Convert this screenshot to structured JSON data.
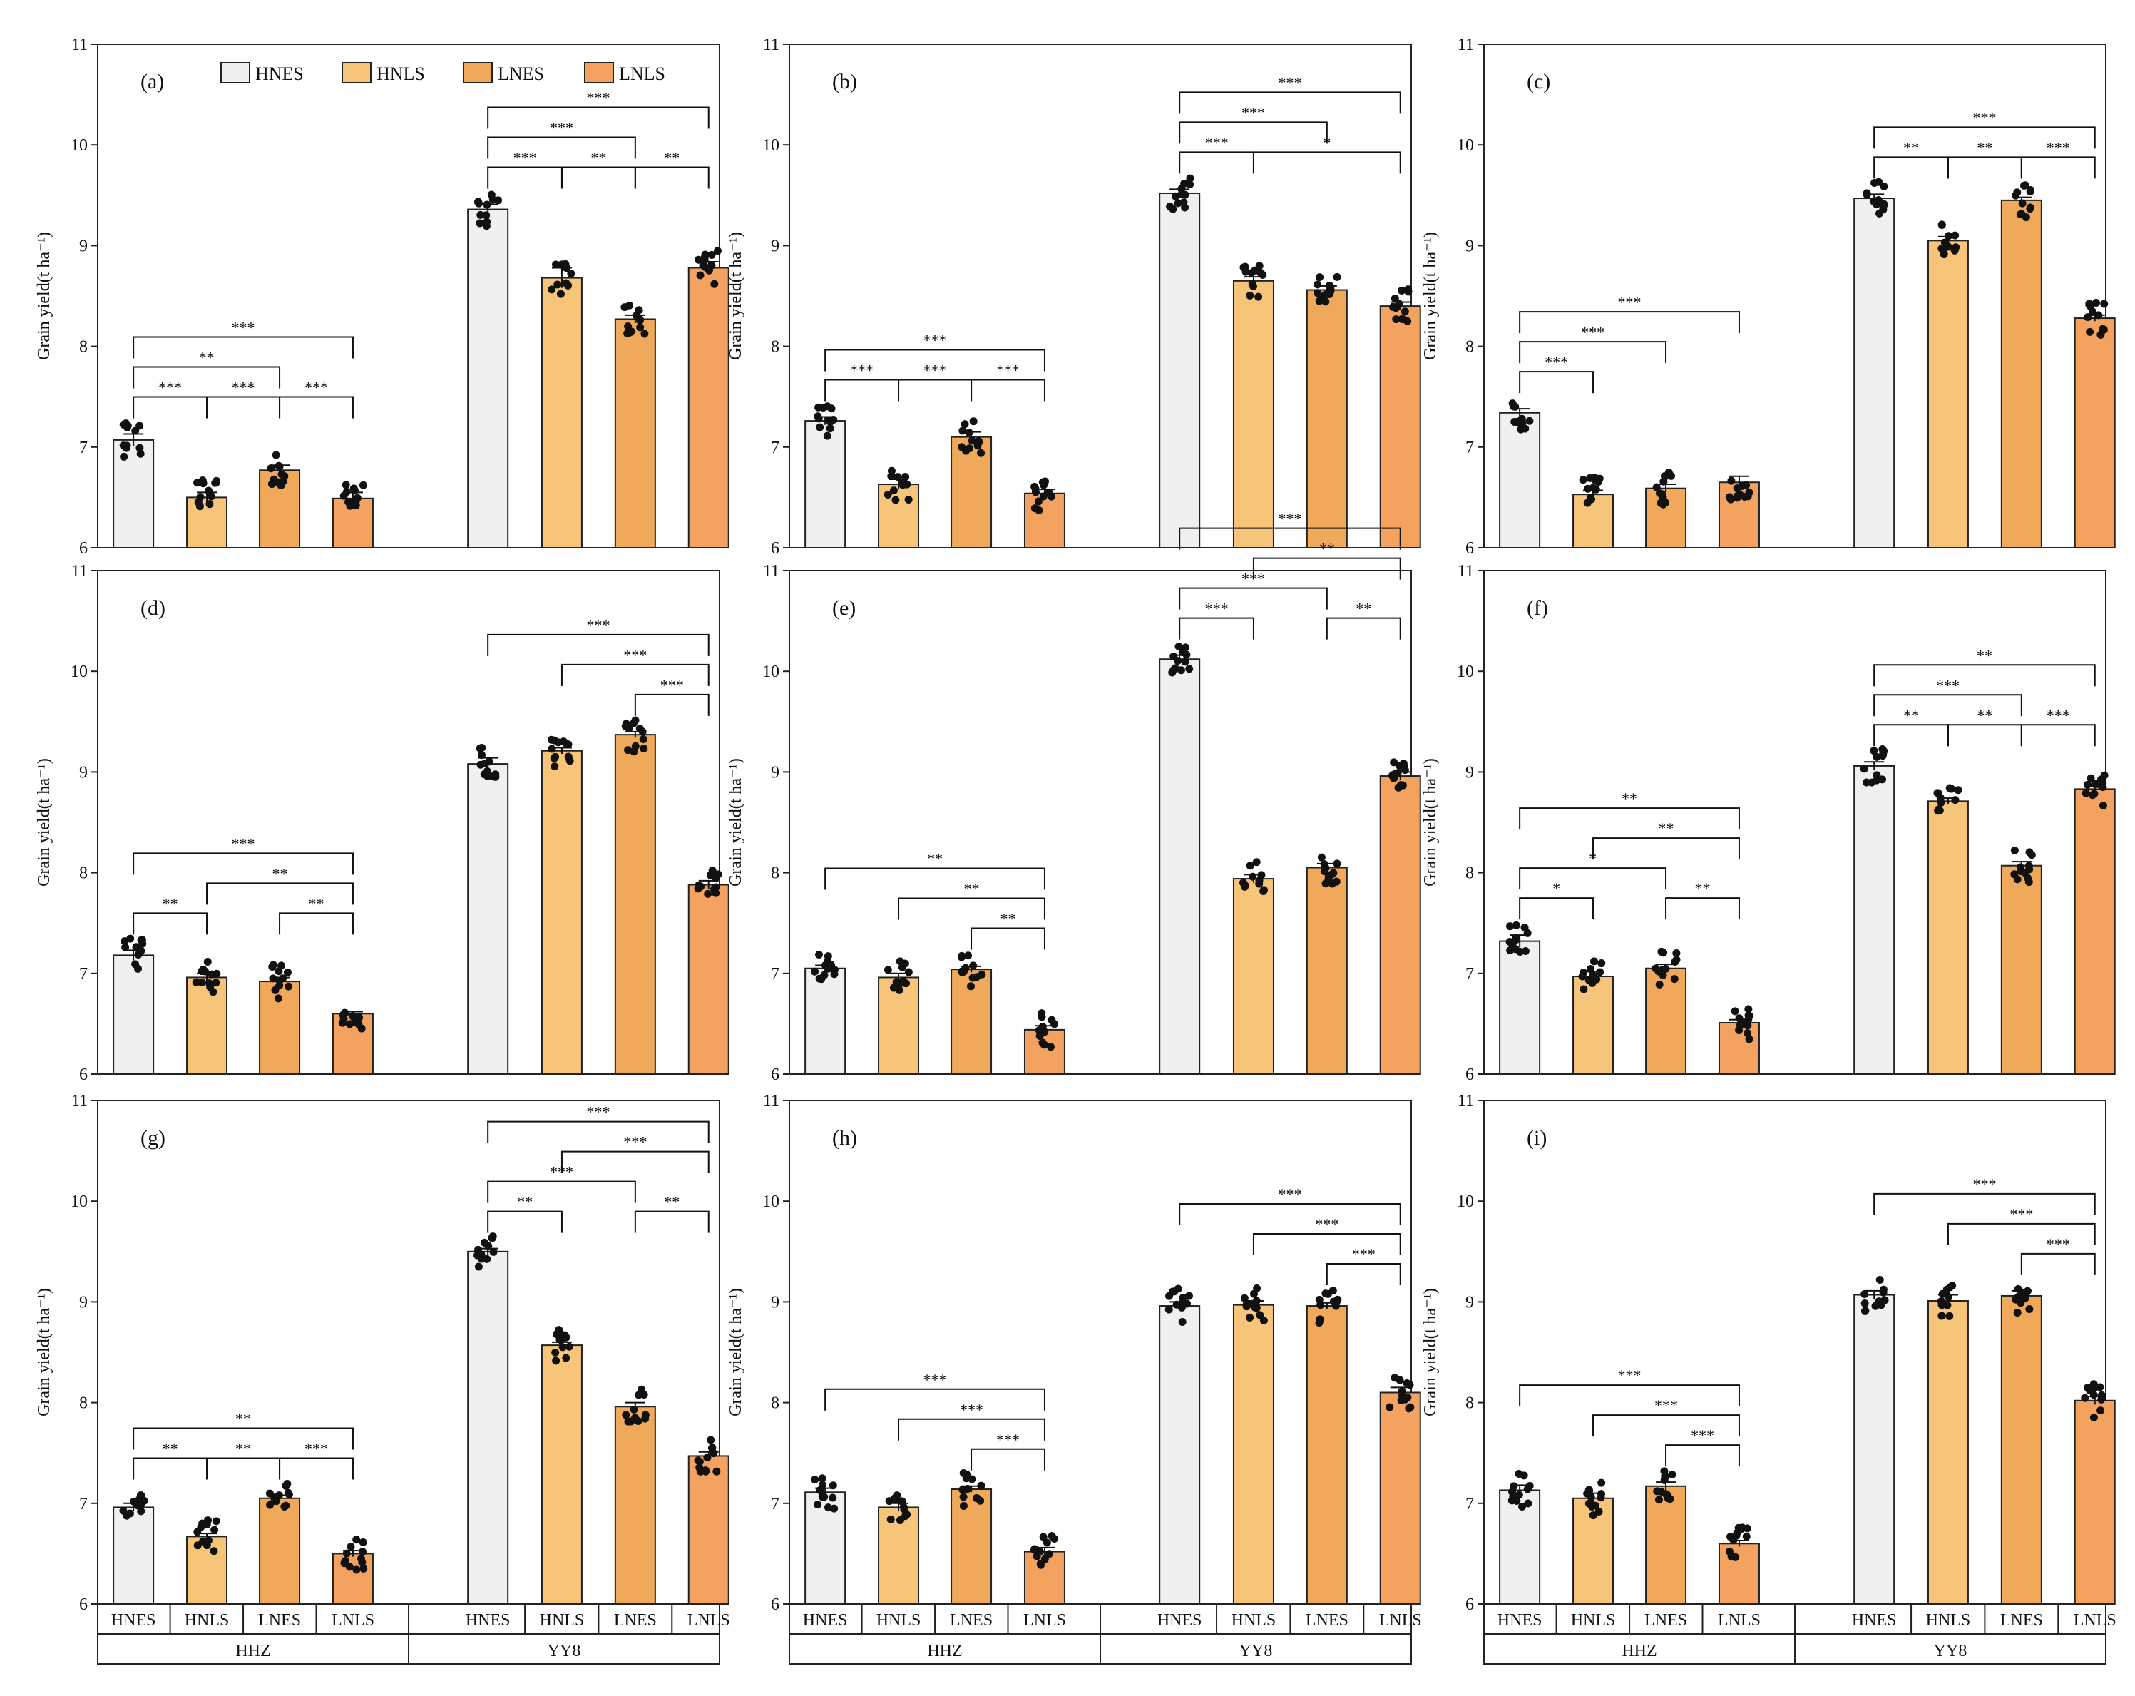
{
  "figure": {
    "legend": [
      {
        "label": "HNES",
        "color": "#f0f0f0"
      },
      {
        "label": "HNLS",
        "color": "#f7c57a"
      },
      {
        "label": "LNES",
        "color": "#f0a95a"
      },
      {
        "label": "LNLS",
        "color": "#f4a260"
      }
    ],
    "ylabel": "Grain yield(t ha⁻¹)",
    "x_categories": [
      "HNES",
      "HNLS",
      "LNES",
      "LNLS"
    ],
    "x_groups": [
      "HHZ",
      "YY8"
    ]
  },
  "chart_data": [
    {
      "type": "bar",
      "title": "(a)",
      "ylabel": "Grain yield(t ha⁻¹)",
      "ylim": [
        6,
        11
      ],
      "yticks": [
        6,
        7,
        8,
        9,
        10,
        11
      ],
      "groups": [
        "HHZ",
        "YY8"
      ],
      "categories": [
        "HNES",
        "HNLS",
        "LNES",
        "LNLS"
      ],
      "series": [
        {
          "name": "HHZ",
          "values": [
            7.07,
            6.5,
            6.77,
            6.49
          ]
        },
        {
          "name": "YY8",
          "values": [
            9.36,
            8.68,
            8.27,
            8.78
          ]
        }
      ],
      "errors": [
        [
          0.06,
          0.05,
          0.05,
          0.06
        ],
        [
          0.05,
          0.1,
          0.04,
          0.06
        ]
      ],
      "significance": [
        {
          "group": 0,
          "from": 0,
          "to": 1,
          "label": "***"
        },
        {
          "group": 0,
          "from": 1,
          "to": 2,
          "label": "***"
        },
        {
          "group": 0,
          "from": 2,
          "to": 3,
          "label": "***"
        },
        {
          "group": 0,
          "from": 0,
          "to": 2,
          "label": "**"
        },
        {
          "group": 0,
          "from": 0,
          "to": 3,
          "label": "***"
        },
        {
          "group": 1,
          "from": 0,
          "to": 1,
          "label": "***"
        },
        {
          "group": 1,
          "from": 1,
          "to": 2,
          "label": "**"
        },
        {
          "group": 1,
          "from": 2,
          "to": 3,
          "label": "**"
        },
        {
          "group": 1,
          "from": 0,
          "to": 2,
          "label": "***"
        },
        {
          "group": 1,
          "from": 0,
          "to": 3,
          "label": "***"
        }
      ]
    },
    {
      "type": "bar",
      "title": "(b)",
      "ylabel": "Grain yield(t ha⁻¹)",
      "ylim": [
        6,
        11
      ],
      "yticks": [
        6,
        7,
        8,
        9,
        10,
        11
      ],
      "groups": [
        "HHZ",
        "YY8"
      ],
      "categories": [
        "HNES",
        "HNLS",
        "LNES",
        "LNLS"
      ],
      "series": [
        {
          "name": "HHZ",
          "values": [
            7.26,
            6.63,
            7.1,
            6.54
          ]
        },
        {
          "name": "YY8",
          "values": [
            9.52,
            8.65,
            8.56,
            8.4
          ]
        }
      ],
      "errors": [
        [
          0.04,
          0.05,
          0.05,
          0.04
        ],
        [
          0.04,
          0.04,
          0.04,
          0.04
        ]
      ],
      "significance": [
        {
          "group": 0,
          "from": 0,
          "to": 1,
          "label": "***"
        },
        {
          "group": 0,
          "from": 1,
          "to": 2,
          "label": "***"
        },
        {
          "group": 0,
          "from": 2,
          "to": 3,
          "label": "***"
        },
        {
          "group": 0,
          "from": 0,
          "to": 3,
          "label": "***"
        },
        {
          "group": 1,
          "from": 0,
          "to": 1,
          "label": "***"
        },
        {
          "group": 1,
          "from": 0,
          "to": 2,
          "label": "***"
        },
        {
          "group": 1,
          "from": 0,
          "to": 3,
          "label": "***"
        },
        {
          "group": 1,
          "from": 1,
          "to": 3,
          "label": "*"
        }
      ]
    },
    {
      "type": "bar",
      "title": "(c)",
      "ylabel": "Grain yield(t ha⁻¹)",
      "ylim": [
        6,
        11
      ],
      "yticks": [
        6,
        7,
        8,
        9,
        10,
        11
      ],
      "groups": [
        "HHZ",
        "YY8"
      ],
      "categories": [
        "HNES",
        "HNLS",
        "LNES",
        "LNLS"
      ],
      "series": [
        {
          "name": "HHZ",
          "values": [
            7.34,
            6.53,
            6.59,
            6.65
          ]
        },
        {
          "name": "YY8",
          "values": [
            9.47,
            9.05,
            9.45,
            8.28
          ]
        }
      ],
      "errors": [
        [
          0.04,
          0.04,
          0.04,
          0.06
        ],
        [
          0.04,
          0.04,
          0.03,
          0.03
        ]
      ],
      "significance": [
        {
          "group": 0,
          "from": 0,
          "to": 1,
          "label": "***"
        },
        {
          "group": 0,
          "from": 0,
          "to": 2,
          "label": "***"
        },
        {
          "group": 0,
          "from": 0,
          "to": 3,
          "label": "***"
        },
        {
          "group": 1,
          "from": 0,
          "to": 1,
          "label": "**"
        },
        {
          "group": 1,
          "from": 1,
          "to": 2,
          "label": "**"
        },
        {
          "group": 1,
          "from": 2,
          "to": 3,
          "label": "***"
        },
        {
          "group": 1,
          "from": 0,
          "to": 3,
          "label": "***"
        }
      ]
    },
    {
      "type": "bar",
      "title": "(d)",
      "ylabel": "Grain yield(t ha⁻¹)",
      "ylim": [
        6,
        11
      ],
      "yticks": [
        6,
        7,
        8,
        9,
        10,
        11
      ],
      "groups": [
        "HHZ",
        "YY8"
      ],
      "categories": [
        "HNES",
        "HNLS",
        "LNES",
        "LNLS"
      ],
      "series": [
        {
          "name": "HHZ",
          "values": [
            7.18,
            6.96,
            6.92,
            6.6
          ]
        },
        {
          "name": "YY8",
          "values": [
            9.08,
            9.21,
            9.37,
            7.88
          ]
        }
      ],
      "errors": [
        [
          0.05,
          0.04,
          0.04,
          0.02
        ],
        [
          0.06,
          0.03,
          0.03,
          0.04
        ]
      ],
      "significance": [
        {
          "group": 0,
          "from": 0,
          "to": 1,
          "label": "**"
        },
        {
          "group": 0,
          "from": 2,
          "to": 3,
          "label": "**"
        },
        {
          "group": 0,
          "from": 1,
          "to": 3,
          "label": "**"
        },
        {
          "group": 0,
          "from": 0,
          "to": 3,
          "label": "***"
        },
        {
          "group": 1,
          "from": 2,
          "to": 3,
          "label": "***"
        },
        {
          "group": 1,
          "from": 1,
          "to": 3,
          "label": "***"
        },
        {
          "group": 1,
          "from": 0,
          "to": 3,
          "label": "***"
        }
      ]
    },
    {
      "type": "bar",
      "title": "(e)",
      "ylabel": "Grain yield(t ha⁻¹)",
      "ylim": [
        6,
        11
      ],
      "yticks": [
        6,
        7,
        8,
        9,
        10,
        11
      ],
      "groups": [
        "HHZ",
        "YY8"
      ],
      "categories": [
        "HNES",
        "HNLS",
        "LNES",
        "LNLS"
      ],
      "series": [
        {
          "name": "HHZ",
          "values": [
            7.05,
            6.96,
            7.04,
            6.44
          ]
        },
        {
          "name": "YY8",
          "values": [
            10.12,
            7.94,
            8.05,
            8.96
          ]
        }
      ],
      "errors": [
        [
          0.03,
          0.04,
          0.03,
          0.04
        ],
        [
          0.04,
          0.04,
          0.04,
          0.04
        ]
      ],
      "significance": [
        {
          "group": 0,
          "from": 2,
          "to": 3,
          "label": "**"
        },
        {
          "group": 0,
          "from": 1,
          "to": 3,
          "label": "**"
        },
        {
          "group": 0,
          "from": 0,
          "to": 3,
          "label": "**"
        },
        {
          "group": 1,
          "from": 0,
          "to": 1,
          "label": "***"
        },
        {
          "group": 1,
          "from": 0,
          "to": 2,
          "label": "***"
        },
        {
          "group": 1,
          "from": 0,
          "to": 3,
          "label": "***"
        },
        {
          "group": 1,
          "from": 2,
          "to": 3,
          "label": "**"
        },
        {
          "group": 1,
          "from": 1,
          "to": 3,
          "label": "**"
        }
      ]
    },
    {
      "type": "bar",
      "title": "(f)",
      "ylabel": "Grain yield(t ha⁻¹)",
      "ylim": [
        6,
        11
      ],
      "yticks": [
        6,
        7,
        8,
        9,
        10,
        11
      ],
      "groups": [
        "HHZ",
        "YY8"
      ],
      "categories": [
        "HNES",
        "HNLS",
        "LNES",
        "LNLS"
      ],
      "series": [
        {
          "name": "HHZ",
          "values": [
            7.32,
            6.97,
            7.05,
            6.51
          ]
        },
        {
          "name": "YY8",
          "values": [
            9.06,
            8.71,
            8.07,
            8.83
          ]
        }
      ],
      "errors": [
        [
          0.06,
          0.05,
          0.04,
          0.03
        ],
        [
          0.04,
          0.03,
          0.04,
          0.03
        ]
      ],
      "significance": [
        {
          "group": 0,
          "from": 0,
          "to": 1,
          "label": "*"
        },
        {
          "group": 0,
          "from": 0,
          "to": 2,
          "label": "*"
        },
        {
          "group": 0,
          "from": 0,
          "to": 3,
          "label": "**"
        },
        {
          "group": 0,
          "from": 1,
          "to": 3,
          "label": "**"
        },
        {
          "group": 0,
          "from": 2,
          "to": 3,
          "label": "**"
        },
        {
          "group": 1,
          "from": 0,
          "to": 1,
          "label": "**"
        },
        {
          "group": 1,
          "from": 1,
          "to": 2,
          "label": "**"
        },
        {
          "group": 1,
          "from": 2,
          "to": 3,
          "label": "***"
        },
        {
          "group": 1,
          "from": 0,
          "to": 2,
          "label": "***"
        },
        {
          "group": 1,
          "from": 0,
          "to": 3,
          "label": "**"
        }
      ]
    },
    {
      "type": "bar",
      "title": "(g)",
      "ylabel": "Grain yield(t ha⁻¹)",
      "ylim": [
        6,
        11
      ],
      "yticks": [
        6,
        7,
        8,
        9,
        10,
        11
      ],
      "groups": [
        "HHZ",
        "YY8"
      ],
      "categories": [
        "HNES",
        "HNLS",
        "LNES",
        "LNLS"
      ],
      "series": [
        {
          "name": "HHZ",
          "values": [
            6.96,
            6.67,
            7.05,
            6.5
          ]
        },
        {
          "name": "YY8",
          "values": [
            9.5,
            8.57,
            7.96,
            7.47
          ]
        }
      ],
      "errors": [
        [
          0.04,
          0.03,
          0.03,
          0.03
        ],
        [
          0.03,
          0.03,
          0.04,
          0.04
        ]
      ],
      "significance": [
        {
          "group": 0,
          "from": 0,
          "to": 1,
          "label": "**"
        },
        {
          "group": 0,
          "from": 1,
          "to": 2,
          "label": "**"
        },
        {
          "group": 0,
          "from": 2,
          "to": 3,
          "label": "***"
        },
        {
          "group": 0,
          "from": 0,
          "to": 3,
          "label": "**"
        },
        {
          "group": 1,
          "from": 0,
          "to": 1,
          "label": "**"
        },
        {
          "group": 1,
          "from": 0,
          "to": 2,
          "label": "***"
        },
        {
          "group": 1,
          "from": 0,
          "to": 3,
          "label": "***"
        },
        {
          "group": 1,
          "from": 1,
          "to": 3,
          "label": "***"
        },
        {
          "group": 1,
          "from": 2,
          "to": 3,
          "label": "**"
        }
      ]
    },
    {
      "type": "bar",
      "title": "(h)",
      "ylabel": "Grain yield(t ha⁻¹)",
      "ylim": [
        6,
        11
      ],
      "yticks": [
        6,
        7,
        8,
        9,
        10,
        11
      ],
      "groups": [
        "HHZ",
        "YY8"
      ],
      "categories": [
        "HNES",
        "HNLS",
        "LNES",
        "LNLS"
      ],
      "series": [
        {
          "name": "HHZ",
          "values": [
            7.11,
            6.96,
            7.14,
            6.52
          ]
        },
        {
          "name": "YY8",
          "values": [
            8.96,
            8.97,
            8.96,
            8.1
          ]
        }
      ],
      "errors": [
        [
          0.04,
          0.04,
          0.03,
          0.04
        ],
        [
          0.04,
          0.04,
          0.03,
          0.05
        ]
      ],
      "significance": [
        {
          "group": 0,
          "from": 2,
          "to": 3,
          "label": "***"
        },
        {
          "group": 0,
          "from": 1,
          "to": 3,
          "label": "***"
        },
        {
          "group": 0,
          "from": 0,
          "to": 3,
          "label": "***"
        },
        {
          "group": 1,
          "from": 2,
          "to": 3,
          "label": "***"
        },
        {
          "group": 1,
          "from": 1,
          "to": 3,
          "label": "***"
        },
        {
          "group": 1,
          "from": 0,
          "to": 3,
          "label": "***"
        }
      ]
    },
    {
      "type": "bar",
      "title": "(i)",
      "ylabel": "Grain yield(t ha⁻¹)",
      "ylim": [
        6,
        11
      ],
      "yticks": [
        6,
        7,
        8,
        9,
        10,
        11
      ],
      "groups": [
        "HHZ",
        "YY8"
      ],
      "categories": [
        "HNES",
        "HNLS",
        "LNES",
        "LNLS"
      ],
      "series": [
        {
          "name": "HHZ",
          "values": [
            7.13,
            7.05,
            7.17,
            6.6
          ]
        },
        {
          "name": "YY8",
          "values": [
            9.07,
            9.01,
            9.06,
            8.02
          ]
        }
      ],
      "errors": [
        [
          0.05,
          0.05,
          0.04,
          0.03
        ],
        [
          0.04,
          0.06,
          0.05,
          0.04
        ]
      ],
      "significance": [
        {
          "group": 0,
          "from": 2,
          "to": 3,
          "label": "***"
        },
        {
          "group": 0,
          "from": 1,
          "to": 3,
          "label": "***"
        },
        {
          "group": 0,
          "from": 0,
          "to": 3,
          "label": "***"
        },
        {
          "group": 1,
          "from": 2,
          "to": 3,
          "label": "***"
        },
        {
          "group": 1,
          "from": 1,
          "to": 3,
          "label": "***"
        },
        {
          "group": 1,
          "from": 0,
          "to": 3,
          "label": "***"
        }
      ]
    }
  ]
}
